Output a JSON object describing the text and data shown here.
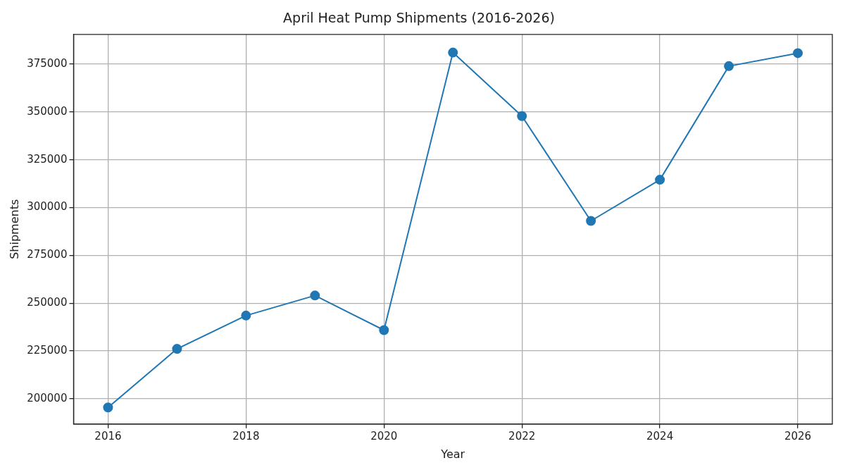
{
  "chart_data": {
    "type": "line",
    "title": "April Heat Pump Shipments (2016-2026)",
    "xlabel": "Year",
    "ylabel": "Shipments",
    "x": [
      2016,
      2017,
      2018,
      2019,
      2020,
      2021,
      2022,
      2023,
      2024,
      2025,
      2026
    ],
    "series": [
      {
        "color": "#1f77b4",
        "values": [
          195500,
          226100,
          243500,
          254000,
          235900,
          381000,
          347800,
          293000,
          314500,
          373900,
          380700
        ]
      }
    ],
    "xlim": [
      2015.5,
      2026.5
    ],
    "xticks": [
      2016,
      2018,
      2020,
      2022,
      2024,
      2026
    ],
    "ylim": [
      186800,
      390500
    ],
    "yticks": [
      200000,
      225000,
      250000,
      275000,
      300000,
      325000,
      350000,
      375000
    ],
    "grid": true,
    "marker": "circle",
    "line_style": "solid",
    "legend": false
  }
}
